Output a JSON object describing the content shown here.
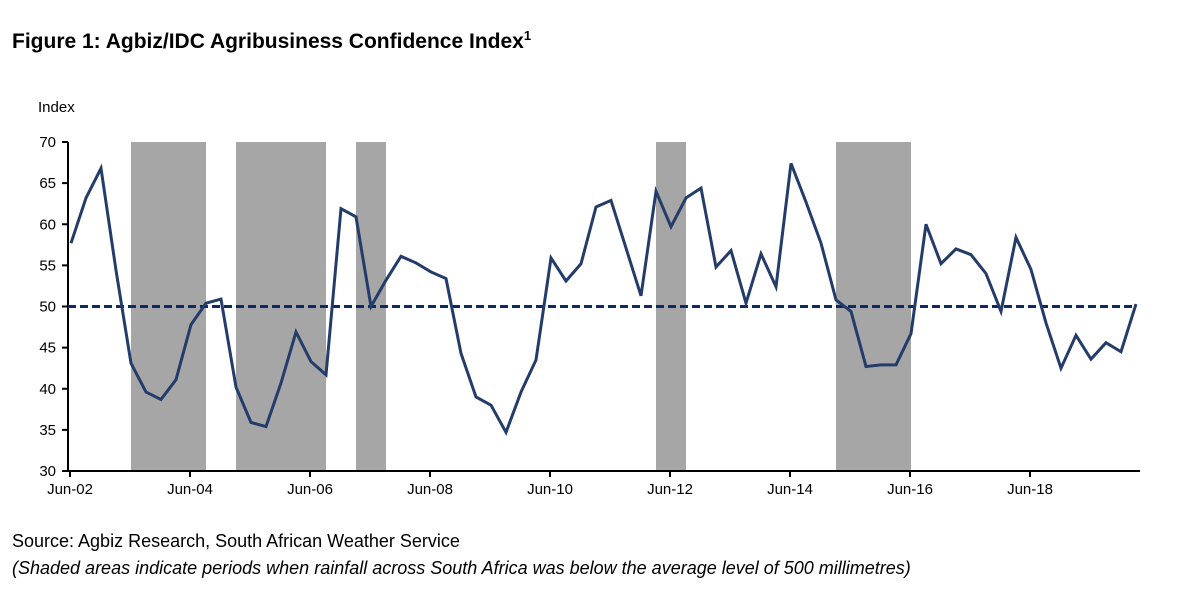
{
  "title": "Figure 1: Agbiz/IDC Agribusiness Confidence Index",
  "title_superscript": "1",
  "source": "Source: Agbiz Research, South African Weather Service",
  "note": "(Shaded areas indicate periods when rainfall across South Africa was below the average level of 500 millimetres)",
  "chart_data": {
    "type": "line",
    "ylabel": "Index",
    "xlabel": "",
    "ylim": [
      30,
      70
    ],
    "yticks": [
      30,
      35,
      40,
      45,
      50,
      55,
      60,
      65,
      70
    ],
    "x_frequency": "quarterly, starting Jun-02",
    "xtick_labels": [
      {
        "label": "Jun-02",
        "index": 0
      },
      {
        "label": "Jun-04",
        "index": 8
      },
      {
        "label": "Jun-06",
        "index": 16
      },
      {
        "label": "Jun-08",
        "index": 24
      },
      {
        "label": "Jun-10",
        "index": 32
      },
      {
        "label": "Jun-12",
        "index": 40
      },
      {
        "label": "Jun-14",
        "index": 48
      },
      {
        "label": "Jun-16",
        "index": 56
      },
      {
        "label": "Jun-18",
        "index": 64
      }
    ],
    "series": [
      {
        "name": "Agbiz/IDC Agribusiness Confidence Index",
        "color": "#243c6a",
        "values": [
          57.7,
          63.2,
          66.8,
          54.4,
          43.1,
          39.6,
          38.7,
          41.1,
          47.8,
          50.4,
          50.9,
          40.2,
          35.9,
          35.4,
          40.7,
          46.9,
          43.3,
          41.7,
          61.9,
          60.9,
          50.0,
          53.2,
          56.1,
          55.3,
          54.2,
          53.4,
          44.3,
          39.0,
          38.0,
          34.7,
          39.6,
          43.5,
          55.9,
          53.1,
          55.2,
          62.1,
          62.9,
          57.1,
          51.3,
          64.0,
          59.7,
          63.2,
          64.4,
          54.8,
          56.8,
          50.4,
          56.4,
          52.4,
          67.4,
          62.7,
          57.7,
          50.8,
          49.4,
          42.7,
          42.9,
          42.9,
          46.7,
          60.0,
          55.2,
          57.0,
          56.3,
          54.0,
          49.4,
          58.4,
          54.5,
          48.0,
          42.5,
          46.5,
          43.6,
          45.6,
          44.5,
          50.3
        ]
      }
    ],
    "reference_line": {
      "value": 50,
      "style": "dashed",
      "color": "#0d2a66"
    },
    "shaded_periods": [
      {
        "start_index": 4,
        "end_index": 9
      },
      {
        "start_index": 11,
        "end_index": 17
      },
      {
        "start_index": 19,
        "end_index": 21
      },
      {
        "start_index": 39,
        "end_index": 41
      },
      {
        "start_index": 51,
        "end_index": 56
      }
    ],
    "shade_color": "#a6a6a6",
    "grid": false,
    "legend": "none"
  }
}
